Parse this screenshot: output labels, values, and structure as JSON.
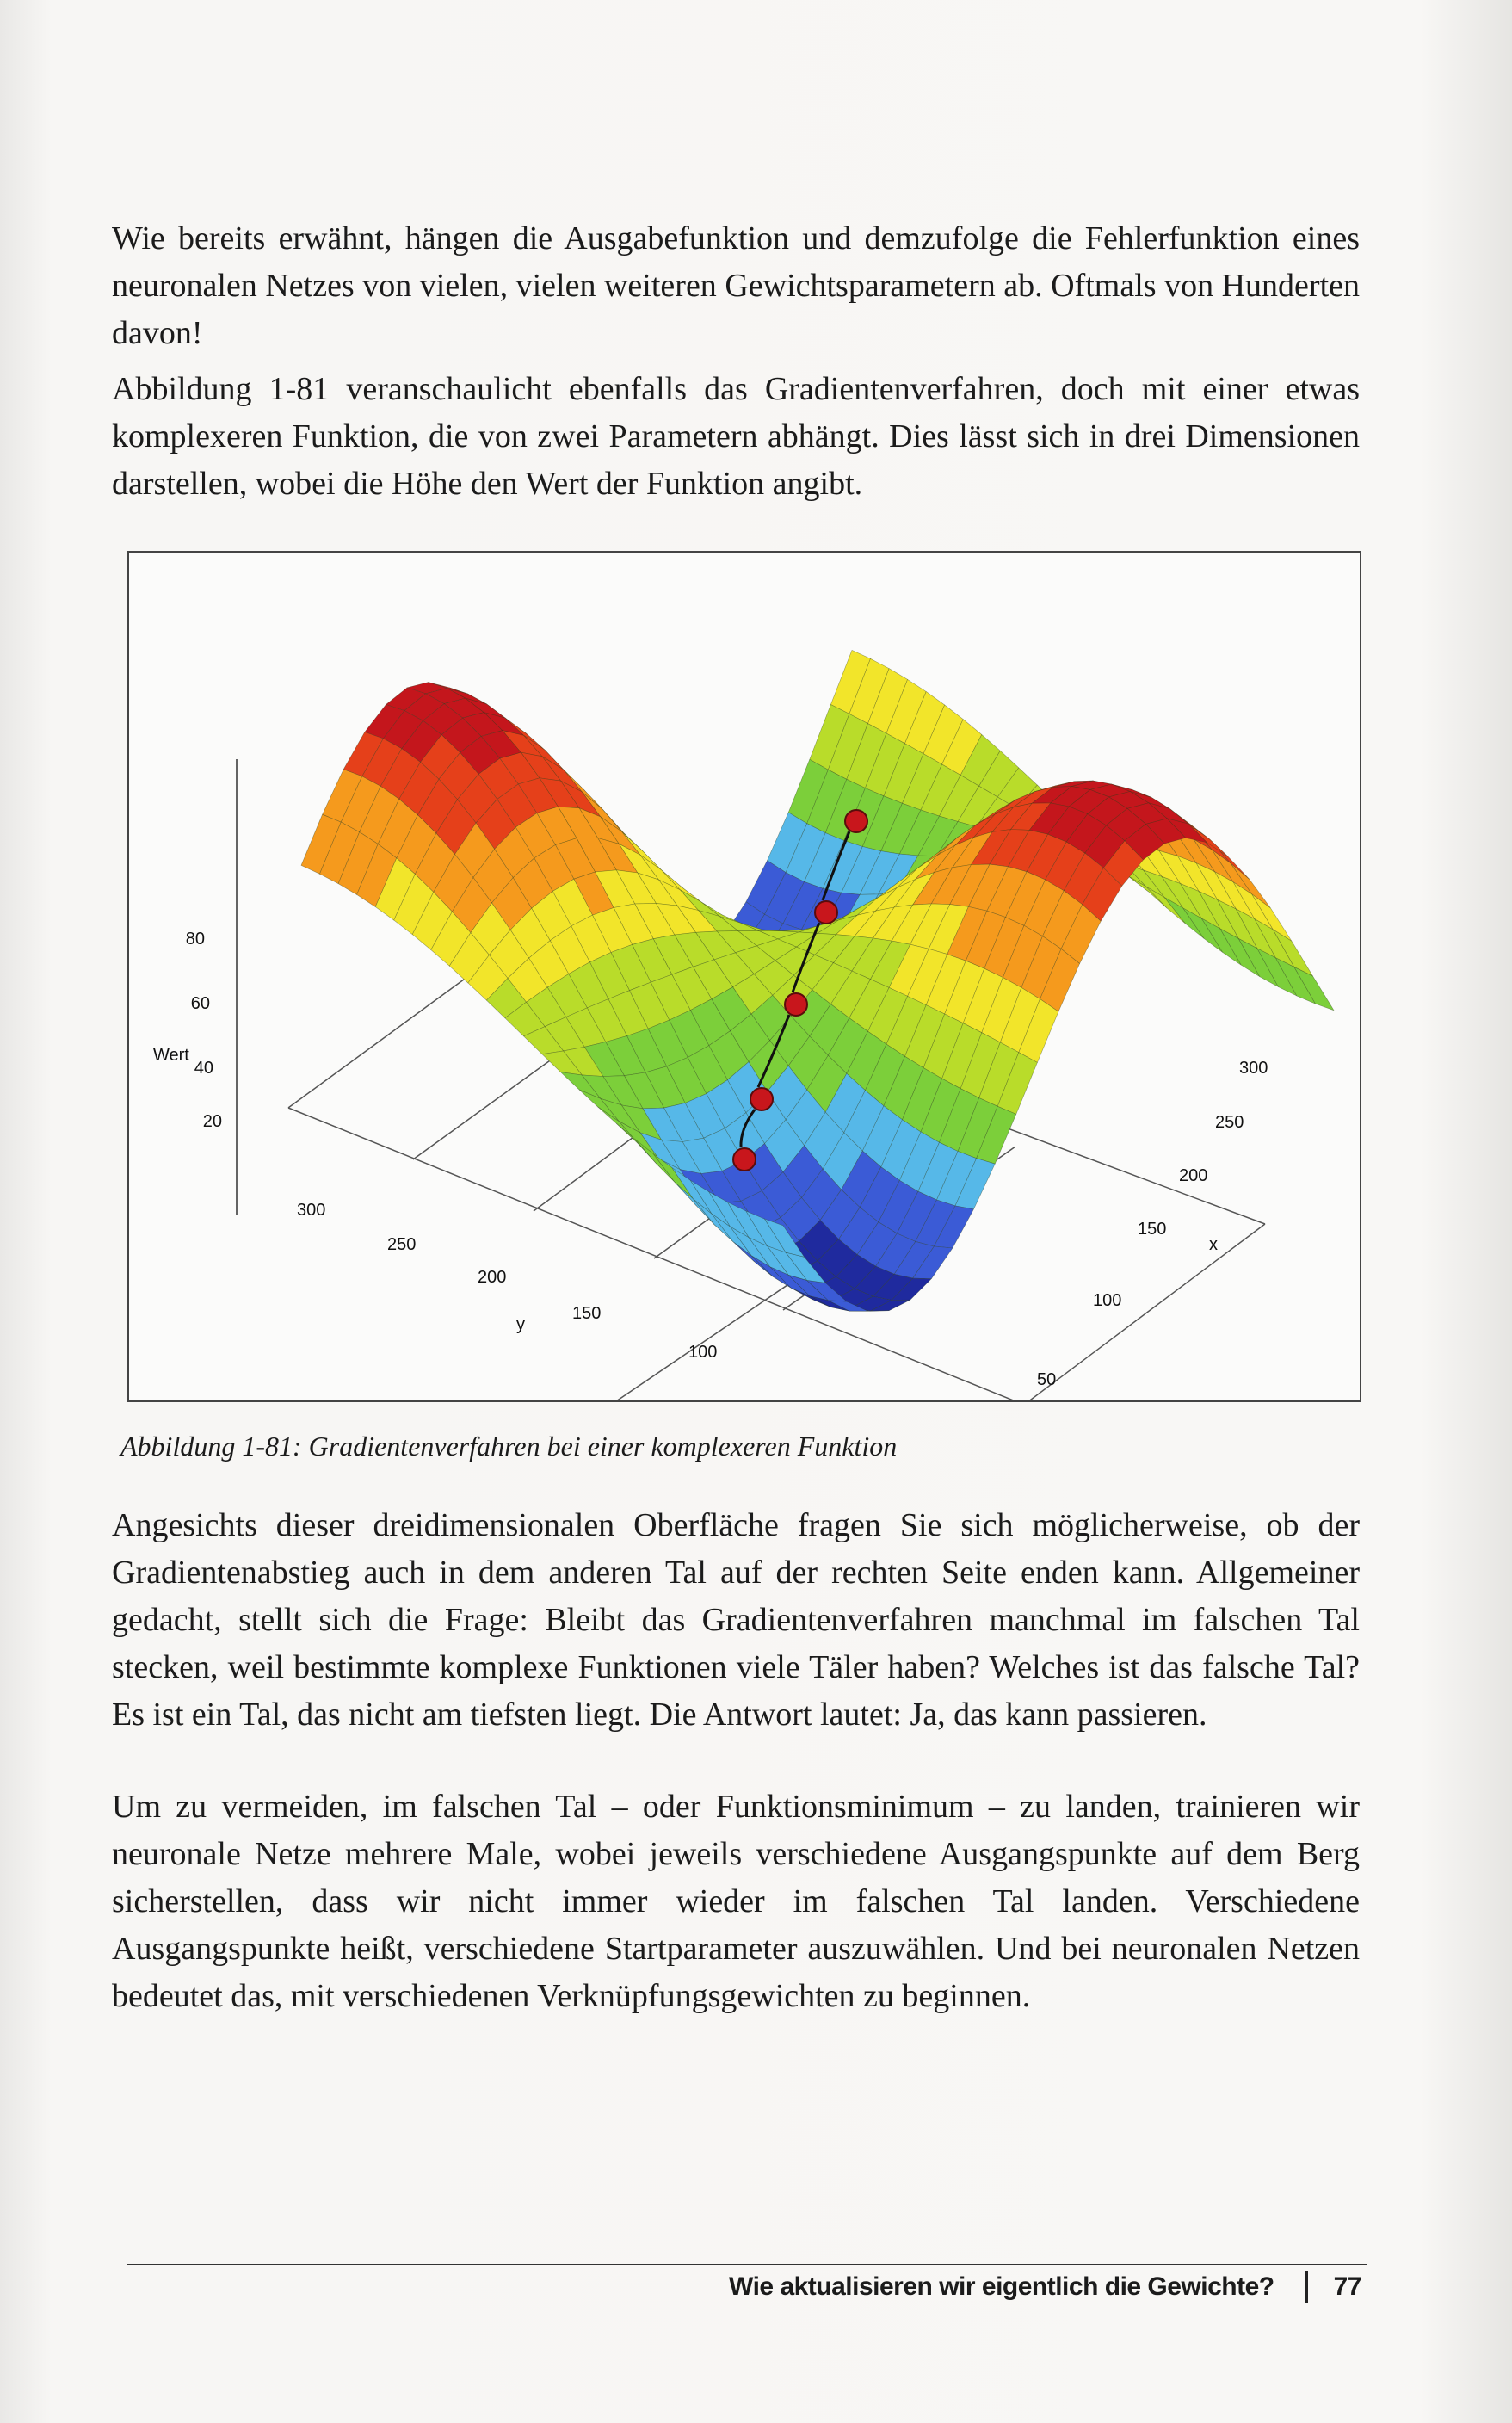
{
  "paragraphs": [
    "Wie bereits erwähnt, hängen die Ausgabefunktion und demzufolge die Fehlerfunktion eines neuronalen Netzes von vielen, vielen weiteren Gewichtsparametern ab. Oftmals von Hunderten davon!",
    "Abbildung 1-81 veranschaulicht ebenfalls das Gradientenverfahren, doch mit einer etwas komplexeren Funktion, die von zwei Parametern abhängt. Dies lässt sich in drei Dimensionen darstellen, wobei die Höhe den Wert der Funktion angibt.",
    "Angesichts dieser dreidimensionalen Oberfläche fragen Sie sich möglicherweise, ob der Gradientenabstieg auch in dem anderen Tal auf der rechten Seite enden kann. Allgemeiner gedacht, stellt sich die Frage: Bleibt das Gradientenverfahren manchmal im falschen Tal stecken, weil bestimmte komplexe Funktionen viele Täler haben? Welches ist das falsche Tal? Es ist ein Tal, das nicht am tiefsten liegt. Die Antwort lautet: Ja, das kann passieren.",
    "Um zu vermeiden, im falschen Tal – oder Funktionsminimum – zu landen, trainieren wir neuronale Netze mehrere Male, wobei jeweils verschiedene Ausgangspunkte auf dem Berg sicherstellen, dass wir nicht immer wieder im falschen Tal landen. Verschiedene Ausgangspunkte heißt, verschiedene Startparameter auszuwählen. Und bei neuronalen Netzen bedeutet das, mit verschiedenen Verknüpfungsgewichten zu beginnen."
  ],
  "figure": {
    "caption": "Abbildung 1-81: Gradientenverfahren bei einer komplexeren Funktion",
    "z_axis": {
      "label": "Wert",
      "ticks": [
        "20",
        "40",
        "60",
        "80"
      ]
    },
    "y_axis": {
      "label": "y",
      "ticks": [
        "300",
        "250",
        "200",
        "150",
        "100"
      ]
    },
    "x_axis": {
      "label": "x",
      "ticks": [
        "300",
        "250",
        "200",
        "150",
        "100",
        "50"
      ]
    },
    "colors": [
      "#1f2a9e",
      "#3b5bd6",
      "#56b8e8",
      "#7ccf3a",
      "#b9dc2a",
      "#f2e52a",
      "#f59a1d",
      "#e5401a",
      "#c4161c"
    ],
    "descent_points": 5,
    "point_color": "#c8161c"
  },
  "footer": {
    "section_title": "Wie aktualisieren wir eigentlich die Gewichte?",
    "page_number": "77"
  }
}
